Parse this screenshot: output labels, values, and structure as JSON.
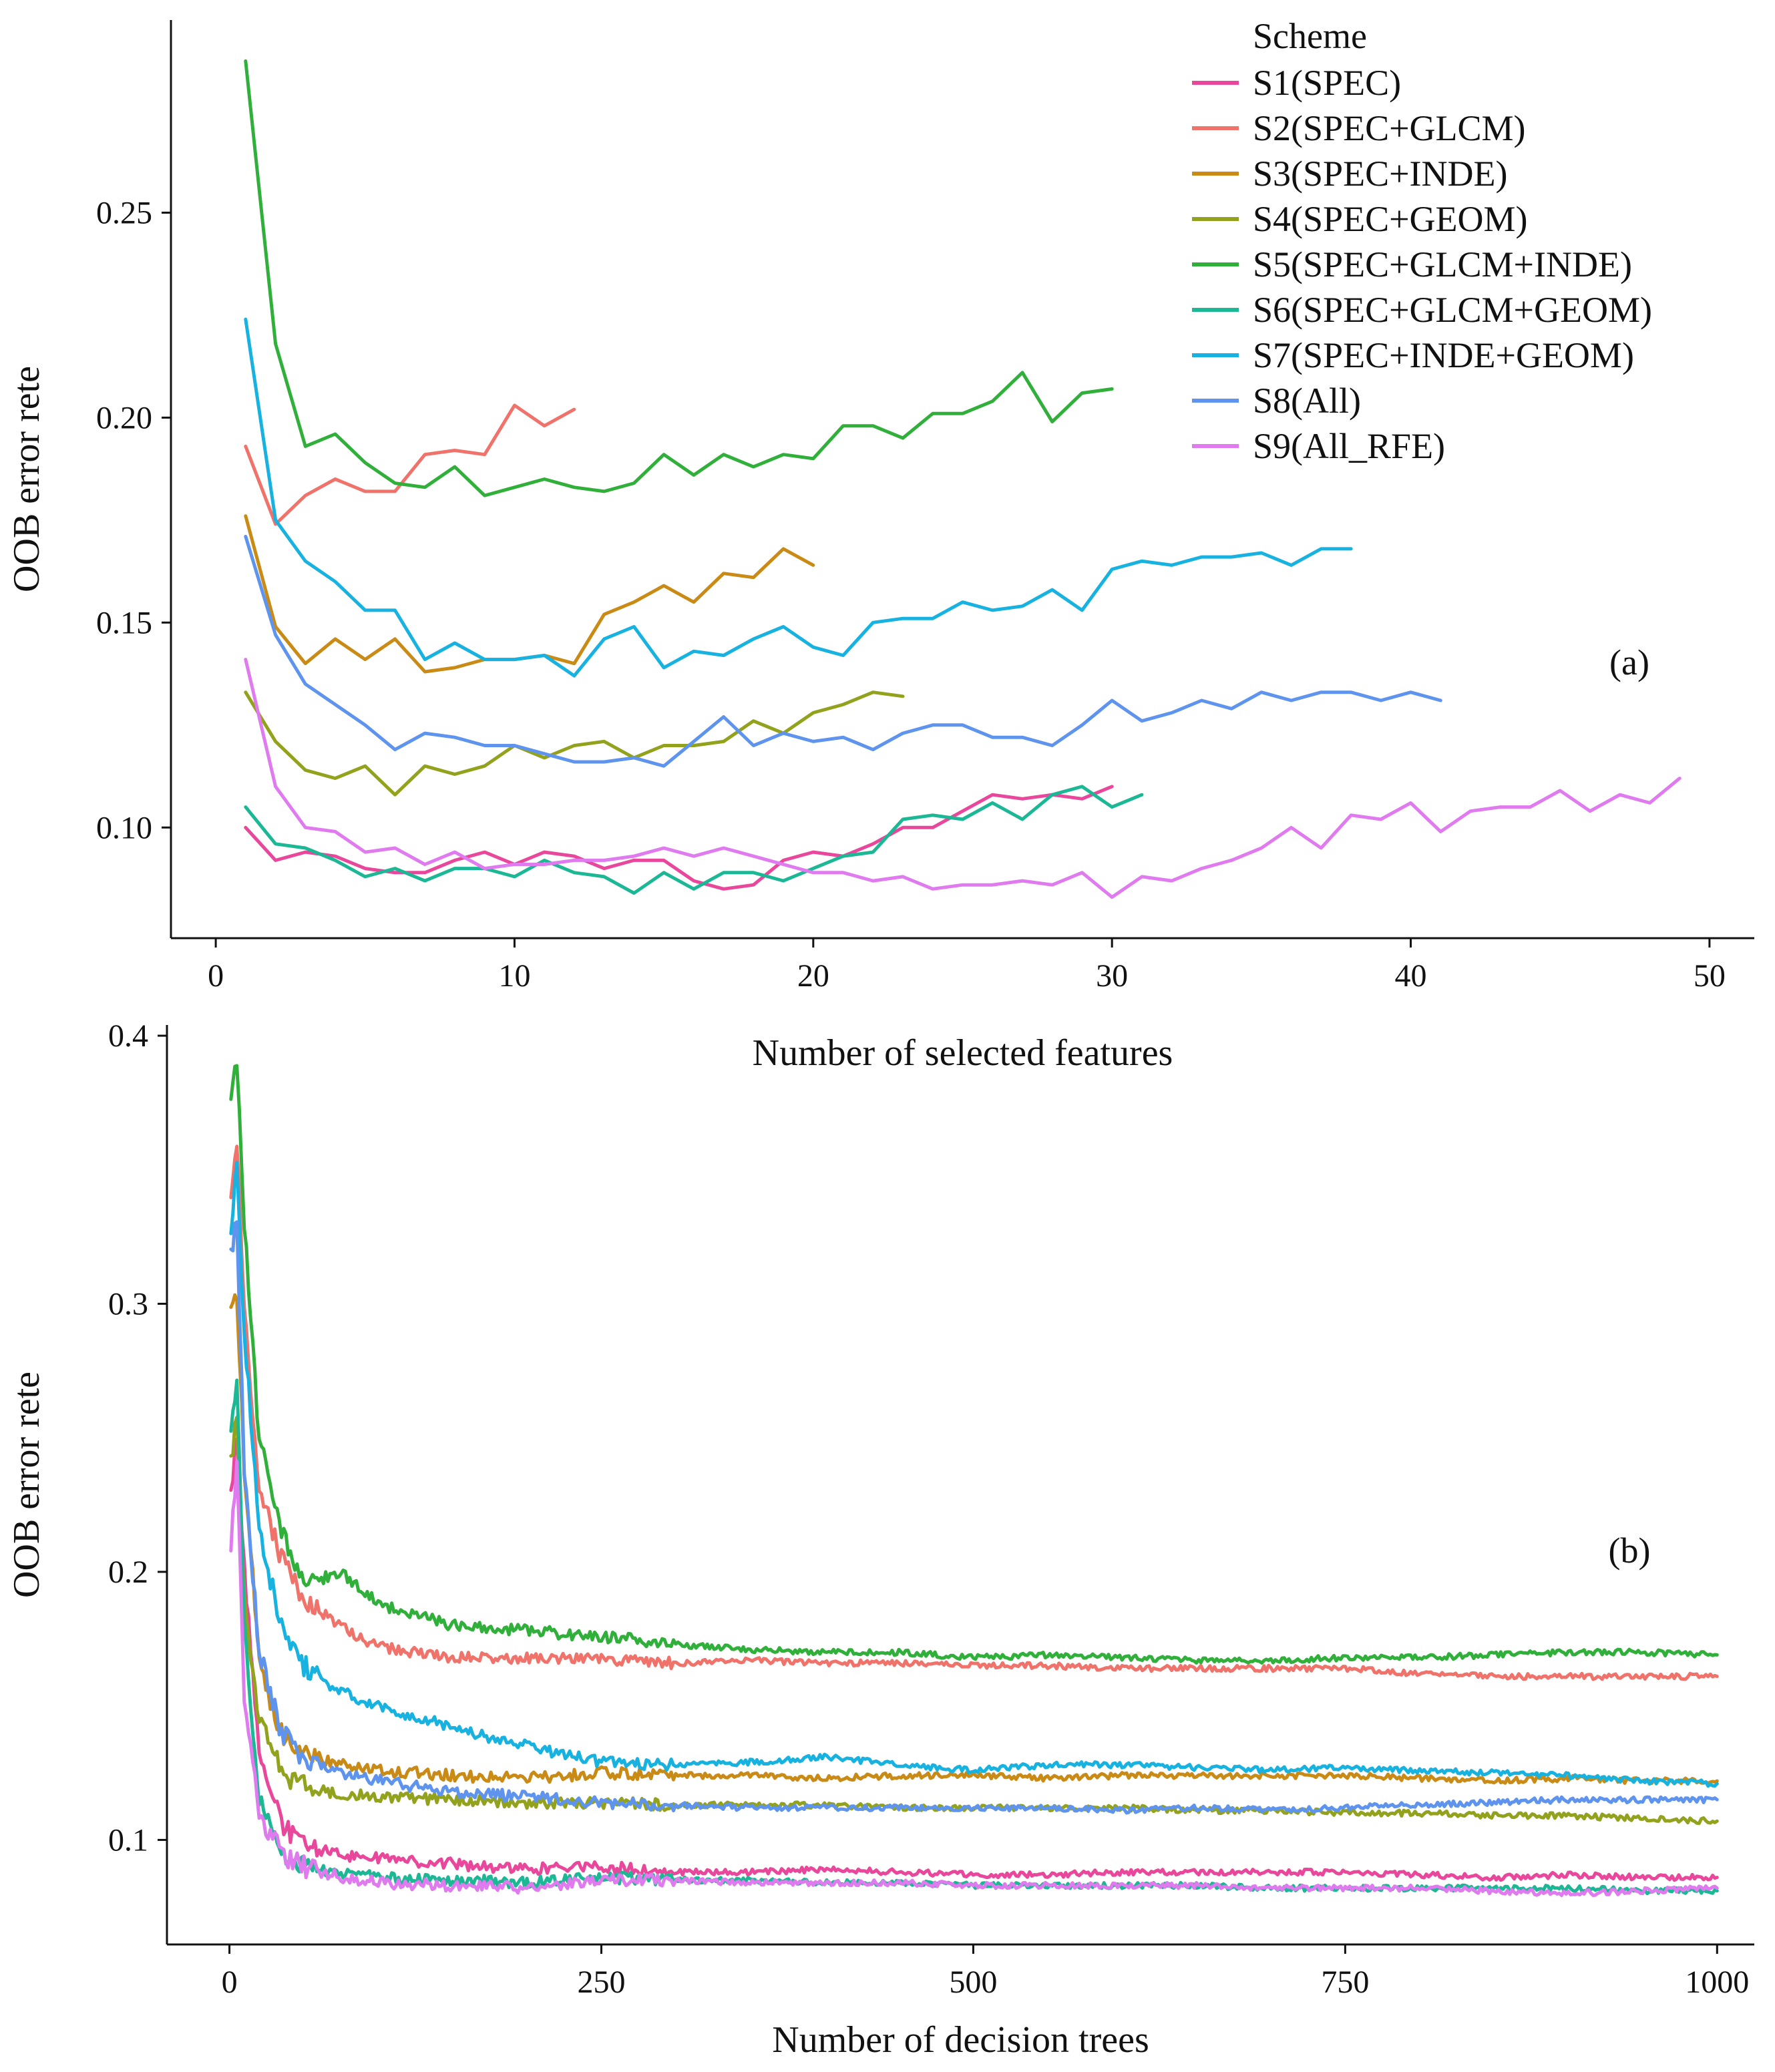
{
  "legend": {
    "title": "Scheme",
    "items": [
      {
        "label": "S1(SPEC)",
        "color": "#E8479B"
      },
      {
        "label": "S2(SPEC+GLCM)",
        "color": "#F0736B"
      },
      {
        "label": "S3(SPEC+INDE)",
        "color": "#C98A16"
      },
      {
        "label": "S4(SPEC+GEOM)",
        "color": "#93A21C"
      },
      {
        "label": "S5(SPEC+GLCM+INDE)",
        "color": "#30B03A"
      },
      {
        "label": "S6(SPEC+GLCM+GEOM)",
        "color": "#1CB895"
      },
      {
        "label": "S7(SPEC+INDE+GEOM)",
        "color": "#17B2E0"
      },
      {
        "label": "S8(All)",
        "color": "#5E94EE"
      },
      {
        "label": "S9(All_RFE)",
        "color": "#E07AEF"
      }
    ]
  },
  "chart_data": [
    {
      "type": "line",
      "panel": "(a)",
      "xlabel": "Number of selected features",
      "ylabel": "OOB error rete",
      "xlim": [
        -1.5,
        51.5
      ],
      "ylim": [
        0.073,
        0.297
      ],
      "xticks": [
        0,
        10,
        20,
        30,
        40,
        50
      ],
      "yticks": [
        0.1,
        0.15,
        0.2,
        0.25
      ],
      "ytick_labels": [
        "0.10",
        "0.15",
        "0.20",
        "0.25"
      ],
      "series": [
        {
          "name": "S1(SPEC)",
          "x_start": 1,
          "values": [
            0.1,
            0.092,
            0.094,
            0.093,
            0.09,
            0.089,
            0.089,
            0.092,
            0.094,
            0.091,
            0.094,
            0.093,
            0.09,
            0.092,
            0.092,
            0.087,
            0.085,
            0.086,
            0.092,
            0.094,
            0.093,
            0.096,
            0.1,
            0.1,
            0.104,
            0.108,
            0.107,
            0.108,
            0.107,
            0.11
          ]
        },
        {
          "name": "S2(SPEC+GLCM)",
          "x_start": 1,
          "values": [
            0.193,
            0.174,
            0.181,
            0.185,
            0.182,
            0.182,
            0.191,
            0.192,
            0.191,
            0.203,
            0.198,
            0.202
          ]
        },
        {
          "name": "S3(SPEC+INDE)",
          "x_start": 1,
          "values": [
            0.176,
            0.149,
            0.14,
            0.146,
            0.141,
            0.146,
            0.138,
            0.139,
            0.141,
            0.141,
            0.142,
            0.14,
            0.152,
            0.155,
            0.159,
            0.155,
            0.162,
            0.161,
            0.168,
            0.164
          ]
        },
        {
          "name": "S4(SPEC+GEOM)",
          "x_start": 1,
          "values": [
            0.133,
            0.121,
            0.114,
            0.112,
            0.115,
            0.108,
            0.115,
            0.113,
            0.115,
            0.12,
            0.117,
            0.12,
            0.121,
            0.117,
            0.12,
            0.12,
            0.121,
            0.126,
            0.123,
            0.128,
            0.13,
            0.133,
            0.132
          ]
        },
        {
          "name": "S5(SPEC+GLCM+INDE)",
          "x_start": 1,
          "values": [
            0.287,
            0.218,
            0.193,
            0.196,
            0.189,
            0.184,
            0.183,
            0.188,
            0.181,
            0.183,
            0.185,
            0.183,
            0.182,
            0.184,
            0.191,
            0.186,
            0.191,
            0.188,
            0.191,
            0.19,
            0.198,
            0.198,
            0.195,
            0.201,
            0.201,
            0.204,
            0.211,
            0.199,
            0.206,
            0.207
          ]
        },
        {
          "name": "S6(SPEC+GLCM+GEOM)",
          "x_start": 1,
          "values": [
            0.105,
            0.096,
            0.095,
            0.092,
            0.088,
            0.09,
            0.087,
            0.09,
            0.09,
            0.088,
            0.092,
            0.089,
            0.088,
            0.084,
            0.089,
            0.085,
            0.089,
            0.089,
            0.087,
            0.09,
            0.093,
            0.094,
            0.102,
            0.103,
            0.102,
            0.106,
            0.102,
            0.108,
            0.11,
            0.105,
            0.108
          ]
        },
        {
          "name": "S7(SPEC+INDE+GEOM)",
          "x_start": 1,
          "values": [
            0.224,
            0.175,
            0.165,
            0.16,
            0.153,
            0.153,
            0.141,
            0.145,
            0.141,
            0.141,
            0.142,
            0.137,
            0.146,
            0.149,
            0.139,
            0.143,
            0.142,
            0.146,
            0.149,
            0.144,
            0.142,
            0.15,
            0.151,
            0.151,
            0.155,
            0.153,
            0.154,
            0.158,
            0.153,
            0.163,
            0.165,
            0.164,
            0.166,
            0.166,
            0.167,
            0.164,
            0.168,
            0.168
          ]
        },
        {
          "name": "S8(All)",
          "x_start": 1,
          "values": [
            0.171,
            0.147,
            0.135,
            0.13,
            0.125,
            0.119,
            0.123,
            0.122,
            0.12,
            0.12,
            0.118,
            0.116,
            0.116,
            0.117,
            0.115,
            0.121,
            0.127,
            0.12,
            0.123,
            0.121,
            0.122,
            0.119,
            0.123,
            0.125,
            0.125,
            0.122,
            0.122,
            0.12,
            0.125,
            0.131,
            0.126,
            0.128,
            0.131,
            0.129,
            0.133,
            0.131,
            0.133,
            0.133,
            0.131,
            0.133,
            0.131
          ]
        },
        {
          "name": "S9(All_RFE)",
          "x_start": 1,
          "values": [
            0.141,
            0.11,
            0.1,
            0.099,
            0.094,
            0.095,
            0.091,
            0.094,
            0.09,
            0.091,
            0.091,
            0.092,
            0.092,
            0.093,
            0.095,
            0.093,
            0.095,
            0.093,
            0.091,
            0.089,
            0.089,
            0.087,
            0.088,
            0.085,
            0.086,
            0.086,
            0.087,
            0.086,
            0.089,
            0.083,
            0.088,
            0.087,
            0.09,
            0.092,
            0.095,
            0.1,
            0.095,
            0.103,
            0.102,
            0.106,
            0.099,
            0.104,
            0.105,
            0.105,
            0.109,
            0.104,
            0.108,
            0.106,
            0.112
          ]
        }
      ]
    },
    {
      "type": "line",
      "panel": "(b)",
      "xlabel": "Number of decision trees",
      "ylabel": "OOB error rete",
      "xlim": [
        -42,
        1025
      ],
      "ylim": [
        0.061,
        0.404
      ],
      "xticks": [
        0,
        250,
        500,
        750,
        1000
      ],
      "yticks": [
        0.1,
        0.2,
        0.3,
        0.4
      ],
      "ytick_labels": [
        "0.1",
        "0.2",
        "0.3",
        "0.4"
      ],
      "x": [
        1,
        5,
        10,
        20,
        35,
        50,
        75,
        100,
        150,
        200,
        250,
        300,
        350,
        400,
        450,
        500,
        550,
        600,
        650,
        700,
        750,
        800,
        850,
        900,
        950,
        1000
      ],
      "series": [
        {
          "name": "S1(SPEC)",
          "values": [
            0.23,
            0.25,
            0.2,
            0.135,
            0.105,
            0.098,
            0.094,
            0.093,
            0.091,
            0.089,
            0.09,
            0.088,
            0.088,
            0.089,
            0.088,
            0.087,
            0.087,
            0.088,
            0.088,
            0.088,
            0.088,
            0.087,
            0.086,
            0.087,
            0.086,
            0.086
          ]
        },
        {
          "name": "S2(SPEC+GLCM)",
          "values": [
            0.34,
            0.36,
            0.3,
            0.23,
            0.205,
            0.19,
            0.18,
            0.172,
            0.168,
            0.168,
            0.167,
            0.166,
            0.167,
            0.166,
            0.166,
            0.165,
            0.165,
            0.164,
            0.164,
            0.164,
            0.164,
            0.162,
            0.161,
            0.161,
            0.161,
            0.161
          ]
        },
        {
          "name": "S3(SPEC+INDE)",
          "values": [
            0.3,
            0.3,
            0.24,
            0.165,
            0.14,
            0.133,
            0.128,
            0.126,
            0.124,
            0.123,
            0.125,
            0.124,
            0.124,
            0.123,
            0.124,
            0.124,
            0.123,
            0.124,
            0.124,
            0.124,
            0.124,
            0.123,
            0.122,
            0.123,
            0.122,
            0.122
          ]
        },
        {
          "name": "S4(SPEC+GEOM)",
          "values": [
            0.24,
            0.26,
            0.19,
            0.145,
            0.125,
            0.12,
            0.117,
            0.116,
            0.115,
            0.114,
            0.114,
            0.113,
            0.113,
            0.113,
            0.112,
            0.112,
            0.112,
            0.112,
            0.111,
            0.111,
            0.11,
            0.11,
            0.109,
            0.109,
            0.108,
            0.107
          ]
        },
        {
          "name": "S5(SPEC+GLCM+INDE)",
          "values": [
            0.38,
            0.39,
            0.33,
            0.25,
            0.215,
            0.195,
            0.2,
            0.188,
            0.18,
            0.178,
            0.176,
            0.173,
            0.171,
            0.17,
            0.17,
            0.168,
            0.169,
            0.168,
            0.167,
            0.167,
            0.168,
            0.168,
            0.169,
            0.17,
            0.17,
            0.169
          ]
        },
        {
          "name": "S6(SPEC+GLCM+GEOM)",
          "values": [
            0.25,
            0.27,
            0.18,
            0.115,
            0.095,
            0.09,
            0.088,
            0.086,
            0.085,
            0.084,
            0.086,
            0.085,
            0.085,
            0.084,
            0.084,
            0.083,
            0.083,
            0.083,
            0.083,
            0.082,
            0.082,
            0.082,
            0.082,
            0.082,
            0.081,
            0.081
          ]
        },
        {
          "name": "S7(SPEC+INDE+GEOM)",
          "values": [
            0.33,
            0.35,
            0.29,
            0.215,
            0.18,
            0.165,
            0.155,
            0.15,
            0.142,
            0.135,
            0.129,
            0.128,
            0.129,
            0.131,
            0.128,
            0.126,
            0.128,
            0.128,
            0.127,
            0.126,
            0.127,
            0.126,
            0.125,
            0.124,
            0.122,
            0.121
          ]
        },
        {
          "name": "S8(All)",
          "values": [
            0.32,
            0.33,
            0.24,
            0.17,
            0.14,
            0.13,
            0.125,
            0.122,
            0.118,
            0.116,
            0.114,
            0.113,
            0.112,
            0.112,
            0.112,
            0.112,
            0.112,
            0.111,
            0.112,
            0.111,
            0.112,
            0.113,
            0.114,
            0.115,
            0.115,
            0.115
          ]
        },
        {
          "name": "S9(All_RFE)",
          "values": [
            0.21,
            0.24,
            0.15,
            0.11,
            0.095,
            0.09,
            0.086,
            0.084,
            0.083,
            0.082,
            0.085,
            0.085,
            0.084,
            0.084,
            0.084,
            0.083,
            0.083,
            0.083,
            0.083,
            0.082,
            0.082,
            0.082,
            0.081,
            0.08,
            0.081,
            0.082
          ]
        }
      ]
    }
  ]
}
